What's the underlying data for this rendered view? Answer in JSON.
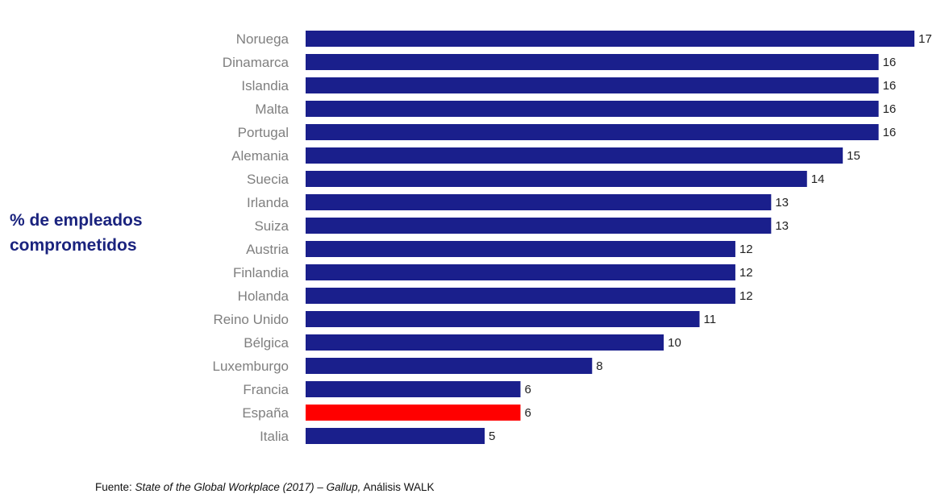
{
  "chart_data": {
    "type": "bar",
    "orientation": "horizontal",
    "ylabel_lines": [
      "% de empleados",
      "comprometidos"
    ],
    "categories": [
      "Noruega",
      "Dinamarca",
      "Islandia",
      "Malta",
      "Portugal",
      "Alemania",
      "Suecia",
      "Irlanda",
      "Suiza",
      "Austria",
      "Finlandia",
      "Holanda",
      "Reino Unido",
      "Bélgica",
      "Luxemburgo",
      "Francia",
      "España",
      "Italia"
    ],
    "values": [
      17,
      16,
      16,
      16,
      16,
      15,
      14,
      13,
      13,
      12,
      12,
      12,
      11,
      10,
      8,
      6,
      6,
      5
    ],
    "xlim": [
      0,
      17
    ],
    "grid": false,
    "colors": {
      "bar": "#1a1f8c",
      "highlight": "#ff0000",
      "category_label": "#7f7f7f",
      "value_label": "#222222",
      "ylabel": "#1a237e"
    },
    "highlight_category": "España"
  },
  "source": {
    "prefix": "Fuente: ",
    "title_italic": "State of the Global Workplace (2017) – Gallup,",
    "suffix": " Análisis WALK"
  }
}
